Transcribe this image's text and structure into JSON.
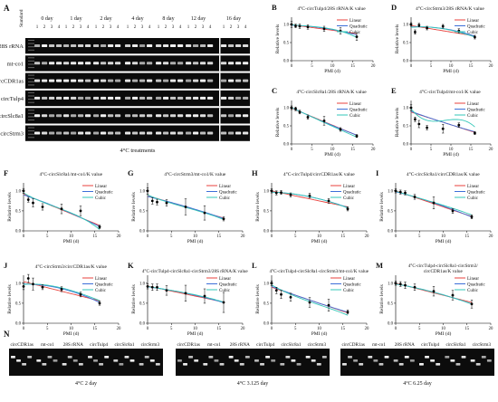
{
  "panel_a": {
    "letter": "A",
    "standard_label": "Standard",
    "day_labels": [
      "0 day",
      "1 day",
      "2 day",
      "4 day",
      "8 day",
      "12 day",
      "16 day"
    ],
    "lane_numbers": [
      "1",
      "2",
      "3",
      "4"
    ],
    "gene_labels": [
      "28S rRNA",
      "mt-co1",
      "circCDR1as",
      "circTulp4",
      "circSlc8a1",
      "circStrm3"
    ],
    "caption": "4°C treatments"
  },
  "common": {
    "xlabel": "PMI (d)",
    "ylabel": "Relative levels",
    "legend": [
      "Linear",
      "Quadratic",
      "Cubic"
    ],
    "colors": {
      "linear": "#e8413c",
      "quadratic": "#3c6fd8",
      "cubic": "#33c7b8"
    }
  },
  "chart_data": [
    {
      "letter": "B",
      "type": "line",
      "title": "4°C-circTulp4/28S rRNA/K value",
      "xlim": [
        0,
        20
      ],
      "ylim": [
        0.0,
        1.2
      ],
      "xticks": [
        0,
        5,
        10,
        15,
        20
      ],
      "yticks": [
        0.0,
        0.5,
        1.0
      ],
      "x": [
        0,
        1,
        2,
        4,
        8,
        12,
        16
      ],
      "y": [
        1.0,
        0.96,
        0.95,
        0.93,
        0.88,
        0.82,
        0.66
      ],
      "err": [
        0.08,
        0.05,
        0.06,
        0.06,
        0.07,
        0.09,
        0.1
      ],
      "fits": {
        "linear": [
          0.99,
          -0.015
        ],
        "quadratic": [
          0.98,
          -0.004,
          -0.0008
        ],
        "cubic": [
          0.99,
          -0.01,
          0.0007,
          -9e-05
        ]
      }
    },
    {
      "letter": "D",
      "type": "line",
      "title": "4°C-circStrm3/28S rRNA/K value",
      "xlim": [
        0,
        20
      ],
      "ylim": [
        0.0,
        1.2
      ],
      "xticks": [
        0,
        5,
        10,
        15,
        20
      ],
      "yticks": [
        0.0,
        0.5,
        1.0
      ],
      "x": [
        0,
        1,
        2,
        4,
        8,
        12,
        16
      ],
      "y": [
        1.0,
        0.79,
        0.98,
        0.9,
        0.95,
        0.82,
        0.65
      ],
      "err": [
        0.05,
        0.06,
        0.05,
        0.05,
        0.05,
        0.06,
        0.05
      ],
      "fits": {
        "linear": [
          0.97,
          -0.018
        ],
        "quadratic": [
          0.93,
          0.005,
          -0.0013
        ],
        "cubic": [
          0.92,
          0.01,
          -0.002,
          2e-05
        ]
      }
    },
    {
      "letter": "C",
      "type": "line",
      "title": "4°C-circSlc8a1/28S rRNA/K value",
      "xlim": [
        0,
        20
      ],
      "ylim": [
        0.0,
        1.2
      ],
      "xticks": [
        0,
        5,
        10,
        15,
        20
      ],
      "yticks": [
        0.0,
        0.5,
        1.0
      ],
      "x": [
        0,
        1,
        2,
        4,
        8,
        12,
        16
      ],
      "y": [
        1.0,
        0.97,
        0.88,
        0.74,
        0.64,
        0.4,
        0.22
      ],
      "err": [
        0.05,
        0.05,
        0.05,
        0.06,
        0.12,
        0.05,
        0.04
      ],
      "fits": {
        "linear": [
          0.99,
          -0.047
        ],
        "quadratic": [
          1.0,
          -0.052,
          0.0003
        ],
        "cubic": [
          1.0,
          -0.05,
          -0.0002,
          1e-05
        ]
      }
    },
    {
      "letter": "E",
      "type": "line",
      "title": "4°C-circTulp4/mt-co1/K value",
      "xlim": [
        0,
        20
      ],
      "ylim": [
        0.0,
        1.2
      ],
      "xticks": [
        0,
        5,
        10,
        15,
        20
      ],
      "yticks": [
        0.0,
        0.5,
        1.0
      ],
      "x": [
        0,
        1,
        2,
        4,
        8,
        12,
        16
      ],
      "y": [
        1.0,
        0.68,
        0.55,
        0.45,
        0.42,
        0.52,
        0.3
      ],
      "err": [
        0.08,
        0.06,
        0.1,
        0.06,
        0.12,
        0.06,
        0.04
      ],
      "fits": {
        "linear": [
          0.88,
          -0.035
        ],
        "quadratic": [
          0.9,
          -0.04,
          0.0003
        ],
        "cubic": [
          0.97,
          -0.14,
          0.018,
          -0.0007
        ]
      }
    },
    {
      "letter": "F",
      "type": "line",
      "title": "4°C-circSlc8a1/mt-co1/K value",
      "xlim": [
        0,
        20
      ],
      "ylim": [
        0.0,
        1.2
      ],
      "xticks": [
        0,
        5,
        10,
        15,
        20
      ],
      "yticks": [
        0.0,
        0.5,
        1.0
      ],
      "x": [
        0,
        1,
        2,
        4,
        8,
        12,
        16
      ],
      "y": [
        1.0,
        0.78,
        0.7,
        0.6,
        0.55,
        0.5,
        0.1
      ],
      "err": [
        0.06,
        0.06,
        0.1,
        0.08,
        0.12,
        0.12,
        0.04
      ],
      "fits": {
        "linear": [
          0.92,
          -0.049
        ],
        "quadratic": [
          0.9,
          -0.04,
          -0.0006
        ],
        "cubic": [
          0.95,
          -0.07,
          0.004,
          -0.0002
        ]
      }
    },
    {
      "letter": "G",
      "type": "line",
      "title": "4°C-circStrm3/mt-co1/K value",
      "xlim": [
        0,
        20
      ],
      "ylim": [
        0.0,
        1.2
      ],
      "xticks": [
        0,
        5,
        10,
        15,
        20
      ],
      "yticks": [
        0.0,
        0.5,
        1.0
      ],
      "x": [
        0,
        1,
        2,
        4,
        8,
        12,
        16
      ],
      "y": [
        1.0,
        0.75,
        0.72,
        0.7,
        0.6,
        0.45,
        0.3
      ],
      "err": [
        0.08,
        0.08,
        0.07,
        0.08,
        0.2,
        0.18,
        0.05
      ],
      "fits": {
        "linear": [
          0.88,
          -0.035
        ],
        "quadratic": [
          0.86,
          -0.028,
          -0.0004
        ],
        "cubic": [
          0.9,
          -0.05,
          0.002,
          -8e-05
        ]
      }
    },
    {
      "letter": "H",
      "type": "line",
      "title": "4°C-circTulp4/circCDR1as/K value",
      "xlim": [
        0,
        20
      ],
      "ylim": [
        0.0,
        1.2
      ],
      "xticks": [
        0,
        5,
        10,
        15,
        20
      ],
      "yticks": [
        0.0,
        0.5,
        1.0
      ],
      "x": [
        0,
        1,
        2,
        4,
        8,
        12,
        16
      ],
      "y": [
        1.0,
        0.95,
        0.96,
        0.9,
        0.88,
        0.75,
        0.55
      ],
      "err": [
        0.05,
        0.05,
        0.05,
        0.05,
        0.06,
        0.06,
        0.05
      ],
      "fits": {
        "linear": [
          1.0,
          -0.025
        ],
        "quadratic": [
          0.97,
          -0.005,
          -0.0012
        ],
        "cubic": [
          0.97,
          -0.004,
          -0.0013,
          0.0
        ]
      }
    },
    {
      "letter": "I",
      "type": "line",
      "title": "4°C-circSlc8a1/circCDR1as/K value",
      "xlim": [
        0,
        20
      ],
      "ylim": [
        0.0,
        1.2
      ],
      "xticks": [
        0,
        5,
        10,
        15,
        20
      ],
      "yticks": [
        0.0,
        0.5,
        1.0
      ],
      "x": [
        0,
        1,
        2,
        4,
        8,
        12,
        16
      ],
      "y": [
        1.0,
        0.97,
        0.95,
        0.85,
        0.7,
        0.5,
        0.35
      ],
      "err": [
        0.05,
        0.05,
        0.05,
        0.06,
        0.15,
        0.06,
        0.05
      ],
      "fits": {
        "linear": [
          1.0,
          -0.04
        ],
        "quadratic": [
          0.98,
          -0.03,
          -0.0006
        ],
        "cubic": [
          0.99,
          -0.035,
          0.0002,
          -2e-05
        ]
      }
    },
    {
      "letter": "J",
      "type": "line",
      "title": "4°C-circStrm3/circCDR1as/K value",
      "xlim": [
        0,
        20
      ],
      "ylim": [
        0.0,
        1.2
      ],
      "xticks": [
        0,
        5,
        10,
        15,
        20
      ],
      "yticks": [
        0.0,
        0.5,
        1.0
      ],
      "x": [
        0,
        1,
        2,
        4,
        8,
        12,
        16
      ],
      "y": [
        0.92,
        1.12,
        0.98,
        0.9,
        0.85,
        0.72,
        0.5
      ],
      "err": [
        0.08,
        0.1,
        0.15,
        0.06,
        0.06,
        0.06,
        0.05
      ],
      "fits": {
        "linear": [
          1.04,
          -0.03
        ],
        "quadratic": [
          0.98,
          0.0,
          -0.0018
        ],
        "cubic": [
          0.97,
          0.01,
          -0.003,
          5e-05
        ]
      }
    },
    {
      "letter": "K",
      "type": "line",
      "title": "4°C-circTulp4-circSlc8a1-circStrm3/28S rRNA/K value",
      "xlim": [
        0,
        20
      ],
      "ylim": [
        0.0,
        1.2
      ],
      "xticks": [
        0,
        5,
        10,
        15,
        20
      ],
      "yticks": [
        0.0,
        0.5,
        1.0
      ],
      "x": [
        0,
        1,
        2,
        4,
        8,
        12,
        16
      ],
      "y": [
        0.92,
        0.9,
        0.9,
        0.82,
        0.75,
        0.68,
        0.52
      ],
      "err": [
        0.06,
        0.08,
        0.08,
        0.12,
        0.2,
        0.18,
        0.25
      ],
      "fits": {
        "linear": [
          0.93,
          -0.025
        ],
        "quadratic": [
          0.91,
          -0.015,
          -0.0006
        ],
        "cubic": [
          0.92,
          -0.02,
          0.0002,
          -3e-05
        ]
      }
    },
    {
      "letter": "L",
      "type": "line",
      "title": "4°C-circTulp4-circSlc8a1-circStrm3/mt-co1/K value",
      "xlim": [
        0,
        20
      ],
      "ylim": [
        0.0,
        1.2
      ],
      "xticks": [
        0,
        5,
        10,
        15,
        20
      ],
      "yticks": [
        0.0,
        0.5,
        1.0
      ],
      "x": [
        0,
        1,
        2,
        4,
        8,
        12,
        16
      ],
      "y": [
        1.0,
        0.82,
        0.72,
        0.65,
        0.52,
        0.45,
        0.28
      ],
      "err": [
        0.06,
        0.08,
        0.1,
        0.1,
        0.12,
        0.15,
        0.05
      ],
      "fits": {
        "linear": [
          0.9,
          -0.04
        ],
        "quadratic": [
          0.92,
          -0.045,
          0.0003
        ],
        "cubic": [
          0.96,
          -0.07,
          0.003,
          -0.0001
        ]
      }
    },
    {
      "letter": "M",
      "type": "line",
      "title": "4°C-circTulp4-circSlc8a1-circStrm3/circCDR1as/K value",
      "xlim": [
        0,
        20
      ],
      "ylim": [
        0.0,
        1.2
      ],
      "xticks": [
        0,
        5,
        10,
        15,
        20
      ],
      "yticks": [
        0.0,
        0.5,
        1.0
      ],
      "x": [
        0,
        1,
        2,
        4,
        8,
        12,
        16
      ],
      "y": [
        1.0,
        0.98,
        0.95,
        0.9,
        0.8,
        0.7,
        0.48
      ],
      "err": [
        0.05,
        0.06,
        0.08,
        0.08,
        0.12,
        0.12,
        0.1
      ],
      "fits": {
        "linear": [
          1.0,
          -0.03
        ],
        "quadratic": [
          0.98,
          -0.02,
          -0.0007
        ],
        "cubic": [
          0.98,
          -0.02,
          -0.0007,
          0.0
        ]
      }
    }
  ],
  "panel_n": {
    "letter": "N",
    "blocks": [
      {
        "labels": [
          "circCDR1as",
          "mt-co1",
          "28S rRNA",
          "circTulp4",
          "circSlc8a1",
          "circStrm3"
        ],
        "caption": "4°C 2 day"
      },
      {
        "labels": [
          "circCDR1as",
          "mt-co1",
          "28S rRNA",
          "circTulp4",
          "circSlc8a1",
          "circStrm3"
        ],
        "caption": "4°C 3.125 day"
      },
      {
        "labels": [
          "circCDR1as",
          "mt-co1",
          "28S rRNA",
          "circTulp4",
          "circSlc8a1",
          "circStrm3"
        ],
        "caption": "4°C 6.25 day"
      }
    ]
  }
}
